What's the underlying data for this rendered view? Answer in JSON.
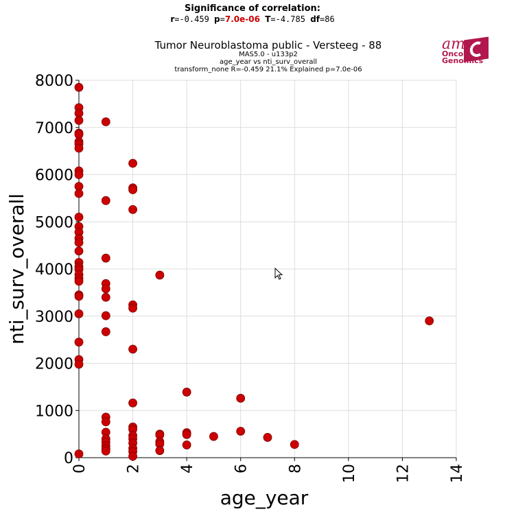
{
  "header": {
    "significance_title": "Significance of correlation:",
    "r_label": "r",
    "r_value": "=-0.459",
    "p_label": "p",
    "p_value": "7.0e-06",
    "t_label": "T",
    "t_value": "=-4.785",
    "df_label": "df",
    "df_value": "=86",
    "title": "Tumor Neuroblastoma public - Versteeg - 88",
    "subtitle1": "MAS5.0 - u133p2",
    "subtitle2": "age_year vs nti_surv_overall",
    "subtitle3": "transform_none R=-0.459 21.1% Explained p=7.0e-06",
    "p_color": "#cc0000"
  },
  "logo": {
    "am": "am",
    "onco": "Onco",
    "genomics": "Genomics",
    "color": "#b1174e"
  },
  "chart_data": {
    "type": "scatter",
    "xlabel": "age_year",
    "ylabel": "nti_surv_overall",
    "xlim": [
      0,
      14
    ],
    "ylim": [
      0,
      8000
    ],
    "xticks": [
      0,
      2,
      4,
      6,
      8,
      10,
      12,
      14
    ],
    "yticks": [
      0,
      1000,
      2000,
      3000,
      4000,
      5000,
      6000,
      7000,
      8000
    ],
    "grid": true,
    "point_color": "#cc0000",
    "points": [
      [
        0,
        7850
      ],
      [
        0,
        7420
      ],
      [
        0,
        7300
      ],
      [
        0,
        7150
      ],
      [
        0,
        6880
      ],
      [
        0,
        6850
      ],
      [
        0,
        6700
      ],
      [
        0,
        6650
      ],
      [
        0,
        6560
      ],
      [
        0,
        6080
      ],
      [
        0,
        6000
      ],
      [
        0,
        5750
      ],
      [
        0,
        5600
      ],
      [
        0,
        5100
      ],
      [
        0,
        4900
      ],
      [
        0,
        4780
      ],
      [
        0,
        4650
      ],
      [
        0,
        4560
      ],
      [
        0,
        4380
      ],
      [
        0,
        4140
      ],
      [
        0,
        4050
      ],
      [
        0,
        3990
      ],
      [
        0,
        3880
      ],
      [
        0,
        3800
      ],
      [
        0,
        3740
      ],
      [
        0,
        3450
      ],
      [
        0,
        3420
      ],
      [
        0,
        3050
      ],
      [
        0,
        2450
      ],
      [
        0,
        2080
      ],
      [
        0,
        1980
      ],
      [
        0,
        80
      ],
      [
        1,
        7120
      ],
      [
        1,
        5450
      ],
      [
        1,
        4230
      ],
      [
        1,
        3690
      ],
      [
        1,
        3580
      ],
      [
        1,
        3400
      ],
      [
        1,
        3010
      ],
      [
        1,
        2670
      ],
      [
        1,
        860
      ],
      [
        1,
        760
      ],
      [
        1,
        540
      ],
      [
        1,
        400
      ],
      [
        1,
        330
      ],
      [
        1,
        250
      ],
      [
        1,
        190
      ],
      [
        1,
        140
      ],
      [
        2,
        6240
      ],
      [
        2,
        5720
      ],
      [
        2,
        5680
      ],
      [
        2,
        5260
      ],
      [
        2,
        3240
      ],
      [
        2,
        3170
      ],
      [
        2,
        2300
      ],
      [
        2,
        1160
      ],
      [
        2,
        650
      ],
      [
        2,
        600
      ],
      [
        2,
        470
      ],
      [
        2,
        400
      ],
      [
        2,
        310
      ],
      [
        2,
        200
      ],
      [
        2,
        130
      ],
      [
        2,
        30
      ],
      [
        3,
        3870
      ],
      [
        3,
        500
      ],
      [
        3,
        480
      ],
      [
        3,
        340
      ],
      [
        3,
        290
      ],
      [
        3,
        150
      ],
      [
        4,
        1390
      ],
      [
        4,
        530
      ],
      [
        4,
        490
      ],
      [
        4,
        270
      ],
      [
        5,
        450
      ],
      [
        6,
        1260
      ],
      [
        6,
        560
      ],
      [
        7,
        430
      ],
      [
        8,
        280
      ],
      [
        13,
        2900
      ]
    ]
  }
}
